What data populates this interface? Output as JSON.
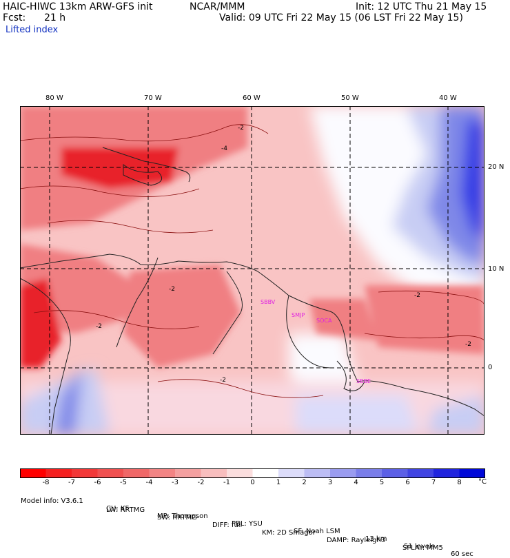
{
  "header": {
    "model": "HAIC-HIWC 13km ARW-GFS init",
    "org": "NCAR/MMM",
    "init": "Init: 12 UTC Thu 21 May 15",
    "fcst_label": "Fcst:",
    "fcst_value": "21 h",
    "valid": "Valid: 09 UTC Fri 22 May 15 (06 LST Fri 22 May 15)",
    "field": "Lifted index"
  },
  "map": {
    "lon_labels": [
      "80 W",
      "70 W",
      "60 W",
      "50 W",
      "40 W"
    ],
    "lat_labels": [
      "20 N",
      "10 N",
      "0"
    ],
    "contour_labels": [
      "-2",
      "-4",
      "-2",
      "-2",
      "-2",
      "-2",
      "-2"
    ],
    "stations": [
      "SBBV",
      "SMJP",
      "SOCA",
      "SBBE"
    ],
    "colors": {
      "strong_unstable": "#e8202a",
      "unstable": "#f07f82",
      "weak_unstable": "#f9c4c4",
      "neutral": "#fbfbff",
      "weak_stable": "#c8cdf4",
      "stable": "#7f88e8",
      "strong_stable": "#2d39e6",
      "station": "#e020e0"
    }
  },
  "colorbar": {
    "labels": [
      "-8",
      "-7",
      "-6",
      "-5",
      "-4",
      "-3",
      "-2",
      "-1",
      "0",
      "1",
      "2",
      "3",
      "4",
      "5",
      "6",
      "7",
      "8"
    ],
    "unit": "°C",
    "colors": [
      "#ff0000",
      "#f52020",
      "#f23838",
      "#f05050",
      "#f06868",
      "#f28484",
      "#f4a0a0",
      "#f8bebe",
      "#fbdede",
      "#ffffff",
      "#dcdcfa",
      "#bcbdf4",
      "#9a9cf0",
      "#7a7eea",
      "#5c60e6",
      "#4044e2",
      "#2024de",
      "#0008d8"
    ]
  },
  "model_info": {
    "row1": [
      {
        "text": "Model info: V3.6.1"
      },
      {
        "text": "CU: KF"
      },
      {
        "text": "MP: Thompson"
      },
      {
        "text": "PBL: YSU"
      },
      {
        "text": "SF: Noah LSM"
      },
      {
        "text": "13 km"
      },
      {
        "text": "51 levels"
      },
      {
        "text": "60 sec"
      }
    ],
    "row2": [
      {
        "text": "LW: RRTMG"
      },
      {
        "text": "SW: RRTMG"
      },
      {
        "text": "DIFF: full"
      },
      {
        "text": "KM: 2D Smagor"
      },
      {
        "text": "DAMP: Rayleigh3"
      },
      {
        "text": "SFLAY: MM5"
      }
    ]
  }
}
